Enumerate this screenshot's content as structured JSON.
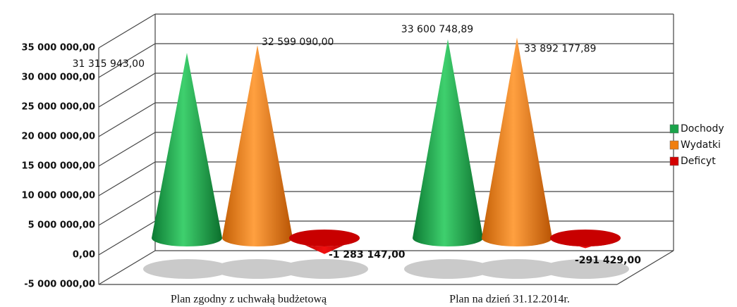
{
  "chart_data": {
    "type": "cone",
    "categories": [
      "Plan zgodny z uchwałą budżetową",
      "Plan na dzień 31.12.2014r."
    ],
    "series": [
      {
        "name": "Dochody",
        "color": "#1aa34a",
        "values": [
          31315943,
          33600748.89
        ],
        "value_labels": [
          "31 315 943,00",
          "33 600 748,89"
        ]
      },
      {
        "name": "Wydatki",
        "color": "#f07f0f",
        "values": [
          32599090,
          33892177.89
        ],
        "value_labels": [
          "32 599 090,00",
          "33 892 177,89"
        ]
      },
      {
        "name": "Deficyt",
        "color": "#d40000",
        "values": [
          -1283147,
          -291429
        ],
        "value_labels": [
          "-1 283 147,00",
          "-291 429,00"
        ]
      }
    ],
    "ylim": [
      -5000000,
      35000000
    ],
    "yticks": [
      {
        "value": -5000000,
        "label": "-5 000 000,00"
      },
      {
        "value": 0,
        "label": "0,00"
      },
      {
        "value": 5000000,
        "label": "5 000 000,00"
      },
      {
        "value": 10000000,
        "label": "10 000 000,00"
      },
      {
        "value": 15000000,
        "label": "15 000 000,00"
      },
      {
        "value": 20000000,
        "label": "20 000 000,00"
      },
      {
        "value": 25000000,
        "label": "25 000 000,00"
      },
      {
        "value": 30000000,
        "label": "30 000 000,00"
      },
      {
        "value": 35000000,
        "label": "35 000 000,00"
      }
    ],
    "grid": true,
    "legend": "right"
  }
}
